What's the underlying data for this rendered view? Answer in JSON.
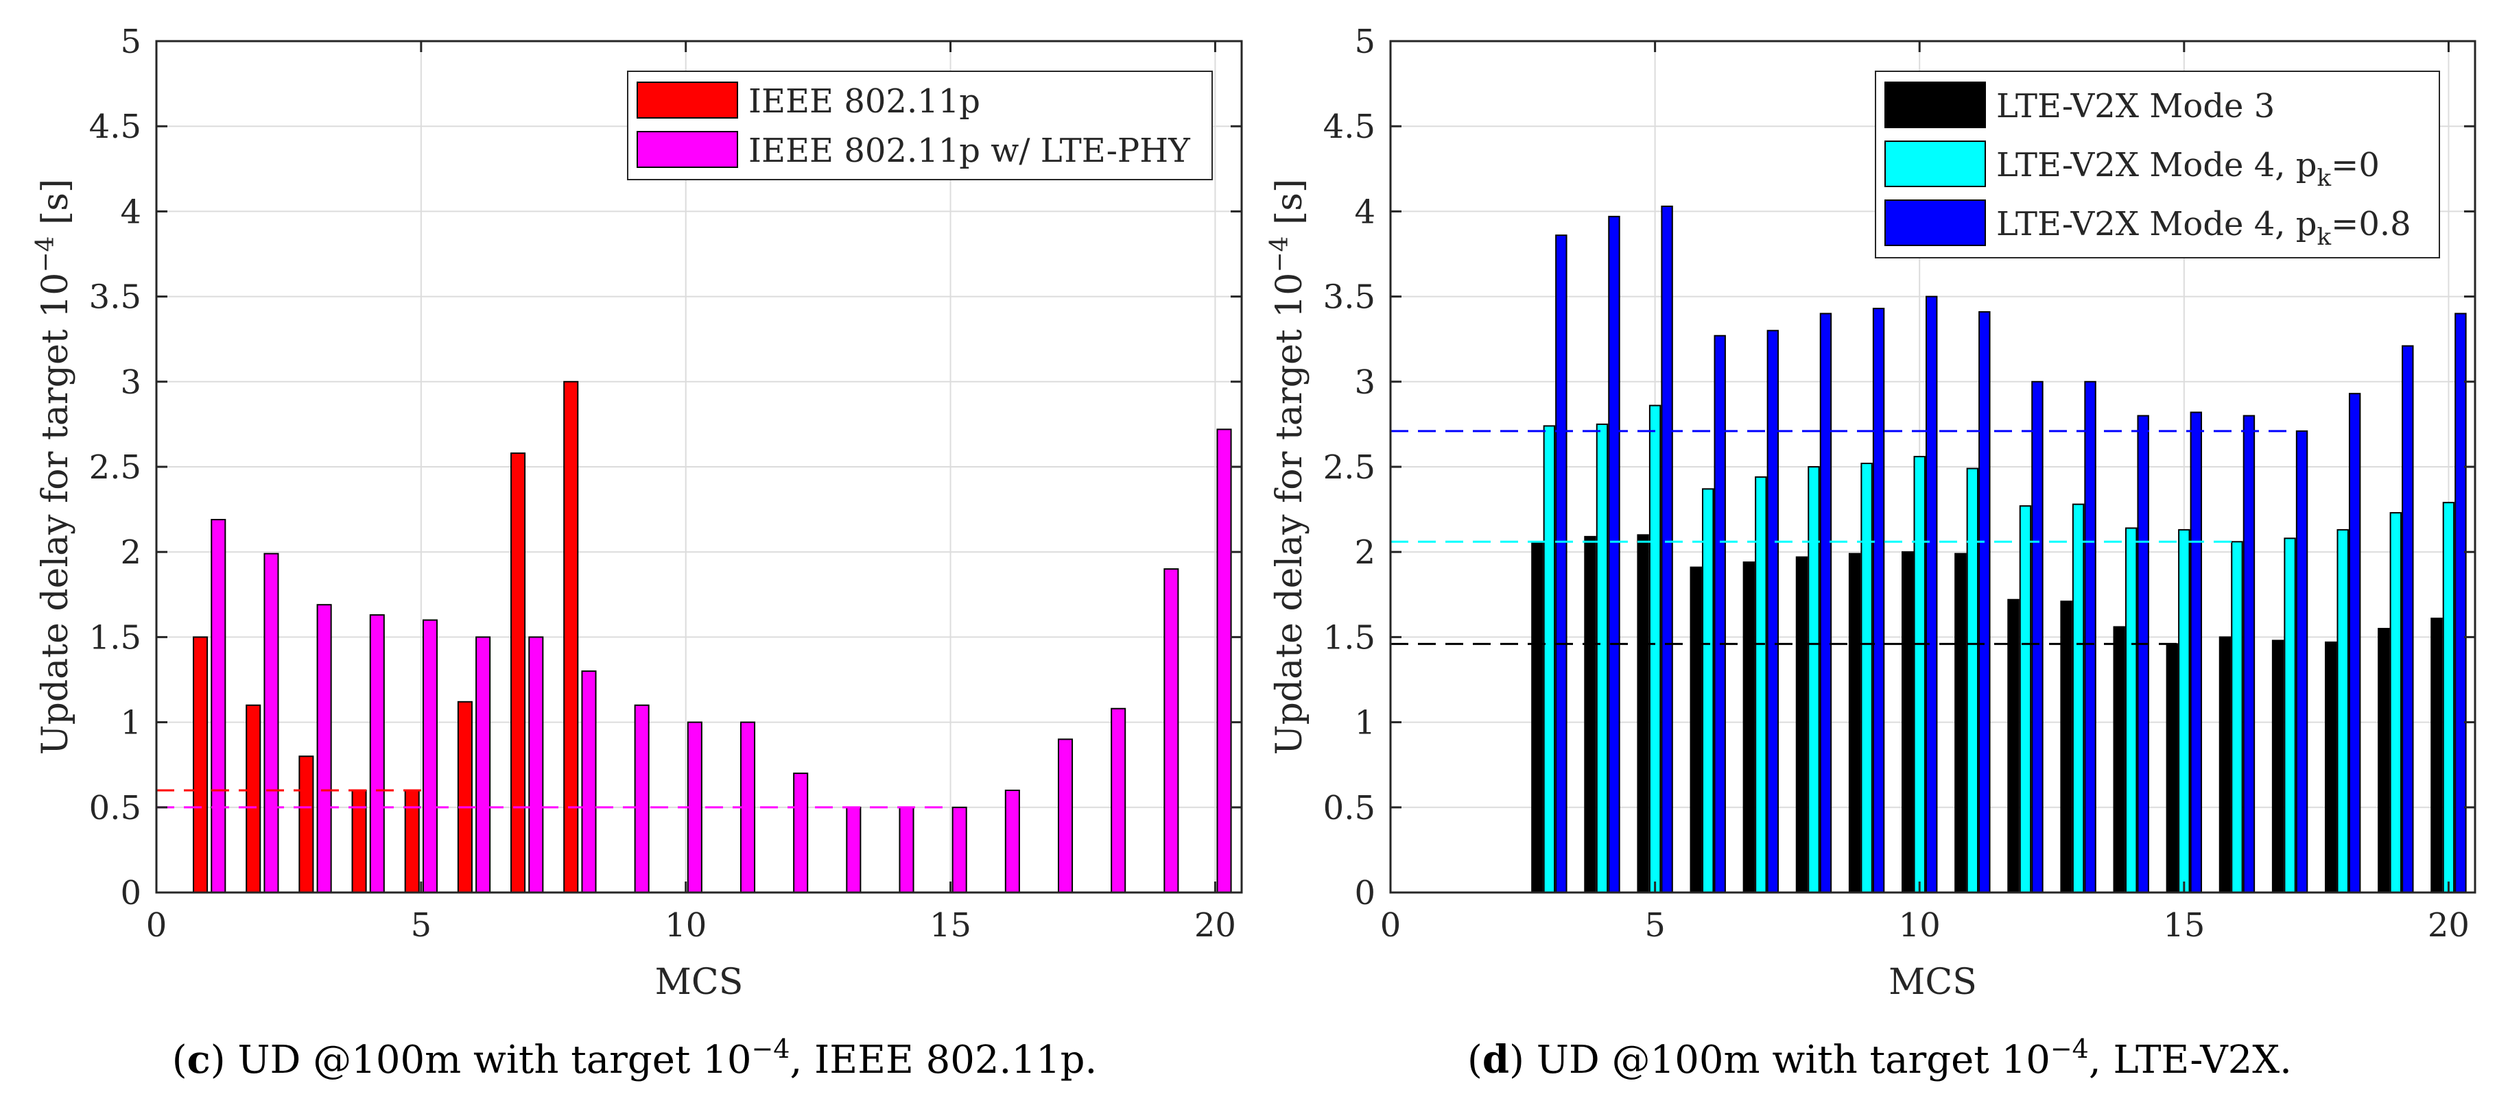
{
  "chart_data": [
    {
      "id": "c",
      "type": "bar",
      "xlabel": "MCS",
      "ylabel_prefix": "Update delay for target 10",
      "ylabel_exp": "−4",
      "ylabel_suffix": " [s]",
      "xlim": [
        0,
        20.5
      ],
      "ylim": [
        0,
        5
      ],
      "xticks": [
        0,
        5,
        10,
        15,
        20
      ],
      "yticks": [
        0,
        0.5,
        1,
        1.5,
        2,
        2.5,
        3,
        3.5,
        4,
        4.5,
        5
      ],
      "ytick_labels": [
        "0",
        "0.5",
        "1",
        "1.5",
        "2",
        "2.5",
        "3",
        "3.5",
        "4",
        "4.5",
        "5"
      ],
      "grid": true,
      "legend_position": "top-right",
      "series": [
        {
          "name": "IEEE 802.11p",
          "color": "#ff0000",
          "x": [
            1,
            2,
            3,
            4,
            5,
            6,
            7,
            8
          ],
          "values": [
            1.5,
            1.1,
            0.8,
            0.6,
            0.6,
            1.12,
            2.58,
            3.0
          ],
          "ref_line": 0.6,
          "ref_line_xrange": [
            0,
            5
          ]
        },
        {
          "name": "IEEE 802.11p w/ LTE-PHY",
          "color": "#ff00ff",
          "x": [
            1,
            2,
            3,
            4,
            5,
            6,
            7,
            8,
            9,
            10,
            11,
            12,
            13,
            14,
            15,
            16,
            17,
            18,
            19,
            20
          ],
          "values": [
            2.19,
            1.99,
            1.69,
            1.63,
            1.6,
            1.5,
            1.5,
            1.3,
            1.1,
            1.0,
            1.0,
            0.7,
            0.5,
            0.5,
            0.5,
            0.6,
            0.9,
            1.08,
            1.9,
            2.72
          ],
          "ref_line": 0.5,
          "ref_line_xrange": [
            0,
            15
          ]
        }
      ],
      "caption_letter": "c",
      "caption_text_1": "UD @100m with target 10",
      "caption_exp": "−4",
      "caption_text_2": ", IEEE 802.11p."
    },
    {
      "id": "d",
      "type": "bar",
      "xlabel": "MCS",
      "ylabel_prefix": "Update delay for target 10",
      "ylabel_exp": "−4",
      "ylabel_suffix": " [s]",
      "xlim": [
        0,
        20.5
      ],
      "ylim": [
        0,
        5
      ],
      "xticks": [
        0,
        5,
        10,
        15,
        20
      ],
      "yticks": [
        0,
        0.5,
        1,
        1.5,
        2,
        2.5,
        3,
        3.5,
        4,
        4.5,
        5
      ],
      "ytick_labels": [
        "0",
        "0.5",
        "1",
        "1.5",
        "2",
        "2.5",
        "3",
        "3.5",
        "4",
        "4.5",
        "5"
      ],
      "grid": true,
      "legend_position": "top-right",
      "series": [
        {
          "name": "LTE-V2X Mode 3",
          "name_main": "LTE-V2X Mode 3",
          "name_sub": "",
          "name_tail": "",
          "color": "#000000",
          "x": [
            3,
            4,
            5,
            6,
            7,
            8,
            9,
            10,
            11,
            12,
            13,
            14,
            15,
            16,
            17,
            18,
            19,
            20
          ],
          "values": [
            2.06,
            2.09,
            2.1,
            1.91,
            1.94,
            1.97,
            1.99,
            2.0,
            1.99,
            1.72,
            1.71,
            1.56,
            1.46,
            1.5,
            1.48,
            1.47,
            1.55,
            1.61
          ],
          "ref_line": 1.46,
          "ref_line_xrange": [
            0,
            15
          ]
        },
        {
          "name": "LTE-V2X Mode 4, pk=0",
          "name_main": "LTE-V2X Mode 4, p",
          "name_sub": "k",
          "name_tail": "=0",
          "color": "#00ffff",
          "x": [
            3,
            4,
            5,
            6,
            7,
            8,
            9,
            10,
            11,
            12,
            13,
            14,
            15,
            16,
            17,
            18,
            19,
            20
          ],
          "values": [
            2.74,
            2.75,
            2.86,
            2.37,
            2.44,
            2.5,
            2.52,
            2.56,
            2.49,
            2.27,
            2.28,
            2.14,
            2.13,
            2.06,
            2.08,
            2.13,
            2.23,
            2.29
          ],
          "ref_line": 2.06,
          "ref_line_xrange": [
            0,
            16
          ]
        },
        {
          "name": "LTE-V2X Mode 4, pk=0.8",
          "name_main": "LTE-V2X Mode 4, p",
          "name_sub": "k",
          "name_tail": "=0.8",
          "color": "#0000ff",
          "x": [
            3,
            4,
            5,
            6,
            7,
            8,
            9,
            10,
            11,
            12,
            13,
            14,
            15,
            16,
            17,
            18,
            19,
            20
          ],
          "values": [
            3.86,
            3.97,
            4.03,
            3.27,
            3.3,
            3.4,
            3.43,
            3.5,
            3.41,
            3.0,
            3.0,
            2.8,
            2.82,
            2.8,
            2.71,
            2.93,
            3.21,
            3.4
          ],
          "ref_line": 2.71,
          "ref_line_xrange": [
            0,
            17
          ]
        }
      ],
      "caption_letter": "d",
      "caption_text_1": "UD @100m with target 10",
      "caption_exp": "−4",
      "caption_text_2": ", LTE-V2X."
    }
  ]
}
